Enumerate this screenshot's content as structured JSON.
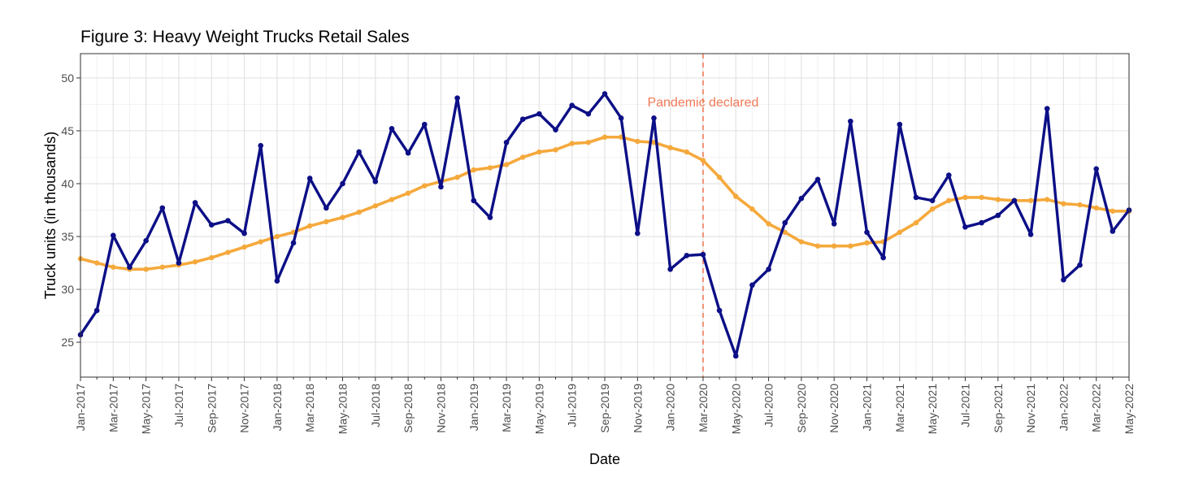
{
  "title": "Figure 3: Heavy Weight Trucks Retail Sales",
  "colors": {
    "actual": "#0c0f86",
    "trend": "#f5a93c",
    "event": "#f07a57",
    "grid_major": "#e3e3e3",
    "grid_minor": "#f2f2f2",
    "panel_border": "#333333"
  },
  "chart_data": {
    "type": "line",
    "title": "Figure 3: Heavy Weight Trucks Retail Sales",
    "xlabel": "Date",
    "ylabel": "Truck units (in thousands)",
    "x_tick_labels": [
      "Jan-2017",
      "Mar-2017",
      "May-2017",
      "Jul-2017",
      "Sep-2017",
      "Nov-2017",
      "Jan-2018",
      "Mar-2018",
      "May-2018",
      "Jul-2018",
      "Sep-2018",
      "Nov-2018",
      "Jan-2019",
      "Mar-2019",
      "May-2019",
      "Jul-2019",
      "Sep-2019",
      "Nov-2019",
      "Jan-2020",
      "Mar-2020",
      "May-2020",
      "Jul-2020",
      "Sep-2020",
      "Nov-2020",
      "Jan-2021",
      "Mar-2021",
      "May-2021",
      "Jul-2021",
      "Sep-2021",
      "Nov-2021",
      "Jan-2022",
      "Mar-2022",
      "May-2022"
    ],
    "y_ticks": [
      25,
      30,
      35,
      40,
      45,
      50
    ],
    "ylim": [
      21.7,
      52.3
    ],
    "xlim": [
      "Jan-2017",
      "May-2022"
    ],
    "grid": true,
    "x": [
      "Jan-2017",
      "Feb-2017",
      "Mar-2017",
      "Apr-2017",
      "May-2017",
      "Jun-2017",
      "Jul-2017",
      "Aug-2017",
      "Sep-2017",
      "Oct-2017",
      "Nov-2017",
      "Dec-2017",
      "Jan-2018",
      "Feb-2018",
      "Mar-2018",
      "Apr-2018",
      "May-2018",
      "Jun-2018",
      "Jul-2018",
      "Aug-2018",
      "Sep-2018",
      "Oct-2018",
      "Nov-2018",
      "Dec-2018",
      "Jan-2019",
      "Feb-2019",
      "Mar-2019",
      "Apr-2019",
      "May-2019",
      "Jun-2019",
      "Jul-2019",
      "Aug-2019",
      "Sep-2019",
      "Oct-2019",
      "Nov-2019",
      "Dec-2019",
      "Jan-2020",
      "Feb-2020",
      "Mar-2020",
      "Apr-2020",
      "May-2020",
      "Jun-2020",
      "Jul-2020",
      "Aug-2020",
      "Sep-2020",
      "Oct-2020",
      "Nov-2020",
      "Dec-2020",
      "Jan-2021",
      "Feb-2021",
      "Mar-2021",
      "Apr-2021",
      "May-2021",
      "Jun-2021",
      "Jul-2021",
      "Aug-2021",
      "Sep-2021",
      "Oct-2021",
      "Nov-2021",
      "Dec-2021",
      "Jan-2022",
      "Feb-2022",
      "Mar-2022",
      "Apr-2022",
      "May-2022"
    ],
    "series": [
      {
        "color": "#0c0f86",
        "values": [
          25.7,
          28.0,
          35.1,
          32.1,
          34.6,
          37.7,
          32.5,
          38.2,
          36.1,
          36.5,
          35.3,
          43.6,
          30.8,
          34.4,
          40.5,
          37.7,
          40.0,
          43.0,
          40.2,
          45.2,
          42.9,
          45.6,
          39.7,
          48.1,
          38.4,
          36.8,
          43.9,
          46.1,
          46.6,
          45.1,
          47.4,
          46.6,
          48.5,
          46.2,
          35.3,
          46.2,
          31.9,
          33.2,
          33.3,
          28.0,
          23.7,
          30.4,
          31.9,
          36.3,
          38.6,
          40.4,
          36.2,
          45.9,
          35.4,
          33.0,
          45.6,
          38.7,
          38.4,
          40.8,
          35.9,
          36.3,
          37.0,
          38.4,
          35.2,
          47.1,
          30.9,
          32.3,
          41.4,
          35.5,
          37.5
        ]
      },
      {
        "color": "#f5a93c",
        "values": [
          32.9,
          32.5,
          32.1,
          31.9,
          31.9,
          32.1,
          32.3,
          32.6,
          33.0,
          33.5,
          34.0,
          34.5,
          35.0,
          35.4,
          36.0,
          36.4,
          36.8,
          37.3,
          37.9,
          38.5,
          39.1,
          39.8,
          40.2,
          40.6,
          41.3,
          41.5,
          41.8,
          42.5,
          43.0,
          43.2,
          43.8,
          43.9,
          44.4,
          44.4,
          44.0,
          43.9,
          43.4,
          43.0,
          42.2,
          40.6,
          38.8,
          37.6,
          36.2,
          35.4,
          34.5,
          34.1,
          34.1,
          34.1,
          34.4,
          34.5,
          35.4,
          36.3,
          37.6,
          38.4,
          38.7,
          38.7,
          38.5,
          38.4,
          38.4,
          38.5,
          38.1,
          38.0,
          37.7,
          37.4,
          37.4
        ]
      }
    ],
    "vline": {
      "x": "Mar-2020",
      "label": "Pandemic declared"
    }
  }
}
